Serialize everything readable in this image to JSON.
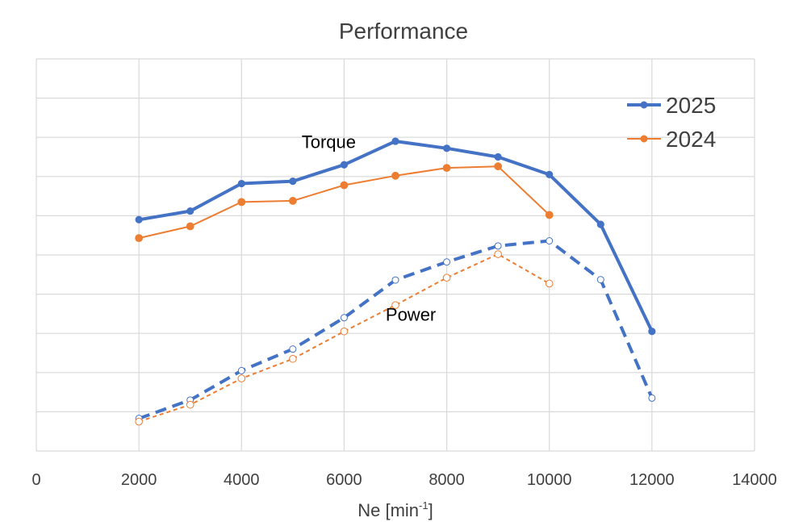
{
  "chart_data": {
    "type": "line",
    "title": "Performance",
    "xlabel": "Ne  [min",
    "xlabel_sup": "-1",
    "xlabel_end": "]",
    "ylabel": "",
    "xlim": [
      0,
      14000
    ],
    "ylim": [
      0,
      100
    ],
    "xticks": [
      0,
      2000,
      4000,
      6000,
      8000,
      10000,
      12000,
      14000
    ],
    "xtick_labels": [
      "0",
      "2000",
      "4000",
      "6000",
      "8000",
      "10000",
      "12000",
      "14000"
    ],
    "ygrid": [
      0,
      10,
      20,
      30,
      40,
      50,
      60,
      70,
      80,
      90,
      100
    ],
    "y_tick_labels_shown": false,
    "grid": true,
    "legend_position": "top-right",
    "colors": {
      "2025": "#4472c4",
      "2024": "#ed7d31"
    },
    "annotations": [
      {
        "text": "Torque",
        "x": 5700,
        "y": 77.3
      },
      {
        "text": "Power",
        "x": 7300,
        "y": 33.2
      }
    ],
    "series": [
      {
        "name": "2025",
        "group": "torque",
        "style": "solid",
        "marker": "filled",
        "x": [
          2000,
          3000,
          4000,
          5000,
          6000,
          7000,
          8000,
          9000,
          10000,
          11000,
          12000
        ],
        "y": [
          59,
          61.2,
          68.2,
          68.8,
          73,
          79,
          77.2,
          75,
          70.5,
          57.8,
          30.5
        ]
      },
      {
        "name": "2024",
        "group": "torque",
        "style": "solid",
        "marker": "filled",
        "x": [
          2000,
          3000,
          4000,
          5000,
          6000,
          7000,
          8000,
          9000,
          10000
        ],
        "y": [
          54.3,
          57.3,
          63.5,
          63.8,
          67.8,
          70.2,
          72.2,
          72.6,
          60.2
        ]
      },
      {
        "name": "2025",
        "group": "power",
        "style": "dashed",
        "marker": "open",
        "x": [
          2000,
          3000,
          4000,
          5000,
          6000,
          7000,
          8000,
          9000,
          10000,
          11000,
          12000
        ],
        "y": [
          8.3,
          13,
          20.5,
          26,
          34,
          43.6,
          48.2,
          52.3,
          53.6,
          43.7,
          13.5
        ]
      },
      {
        "name": "2024",
        "group": "power",
        "style": "dashed",
        "marker": "open",
        "x": [
          2000,
          3000,
          4000,
          5000,
          6000,
          7000,
          8000,
          9000,
          10000
        ],
        "y": [
          7.5,
          11.8,
          18.5,
          23.5,
          30.5,
          37.2,
          44.2,
          50.2,
          42.7
        ]
      }
    ],
    "legend": [
      "2025",
      "2024"
    ]
  }
}
